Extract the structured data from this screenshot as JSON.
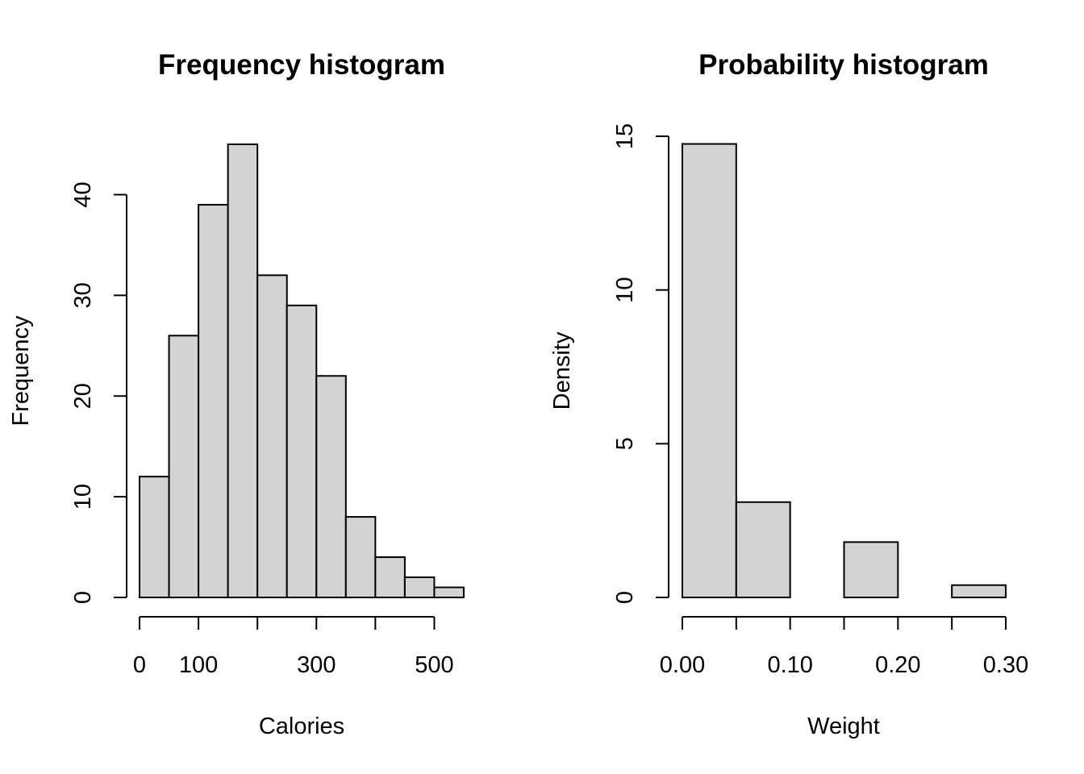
{
  "colors": {
    "bar_fill": "#d3d3d3",
    "bar_stroke": "#000000",
    "background": "#ffffff"
  },
  "chart_data": [
    {
      "type": "bar",
      "title": "Frequency histogram",
      "xlabel": "Calories",
      "ylabel": "Frequency",
      "bin_edges": [
        0,
        50,
        100,
        150,
        200,
        250,
        300,
        350,
        400,
        450,
        500,
        550
      ],
      "values": [
        12,
        26,
        39,
        45,
        32,
        29,
        22,
        8,
        4,
        2,
        1
      ],
      "xlim": [
        0,
        550
      ],
      "ylim": [
        0,
        45
      ],
      "x_ticks": [
        0,
        100,
        200,
        300,
        400,
        500
      ],
      "x_tick_labels": [
        "0",
        "100",
        "",
        "300",
        "",
        "500"
      ],
      "y_ticks": [
        0,
        10,
        20,
        30,
        40
      ],
      "y_tick_labels": [
        "0",
        "10",
        "20",
        "30",
        "40"
      ],
      "grid": false
    },
    {
      "type": "bar",
      "title": "Probability histogram",
      "xlabel": "Weight",
      "ylabel": "Density",
      "bin_edges": [
        0.0,
        0.05,
        0.1,
        0.15,
        0.2,
        0.25,
        0.3
      ],
      "values": [
        14.75,
        3.1,
        0,
        1.8,
        0,
        0.4
      ],
      "xlim": [
        0,
        0.3
      ],
      "ylim": [
        0,
        15
      ],
      "x_ticks": [
        0.0,
        0.05,
        0.1,
        0.15,
        0.2,
        0.25,
        0.3
      ],
      "x_tick_labels": [
        "0.00",
        "",
        "0.10",
        "",
        "0.20",
        "",
        "0.30"
      ],
      "y_ticks": [
        0,
        5,
        10,
        15
      ],
      "y_tick_labels": [
        "0",
        "5",
        "10",
        "15"
      ],
      "grid": false
    }
  ]
}
